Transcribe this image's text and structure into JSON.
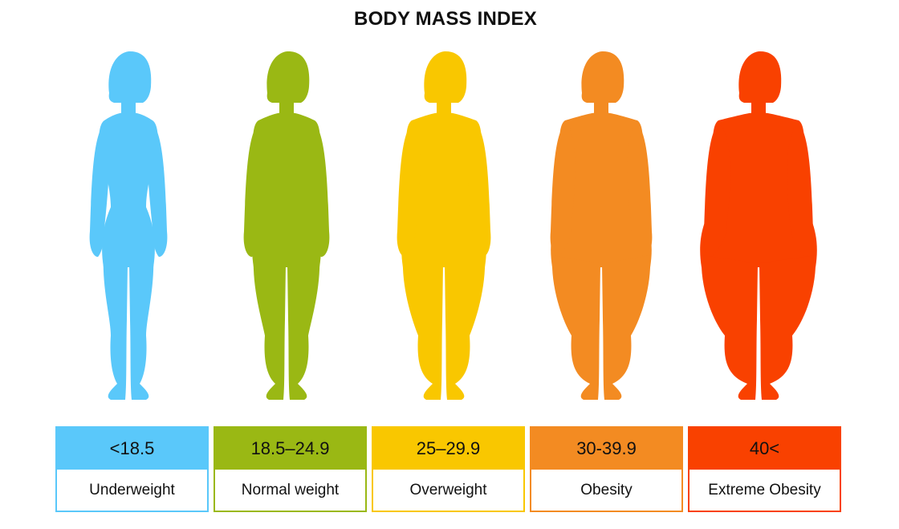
{
  "title": "BODY MASS INDEX",
  "categories": [
    {
      "range": "<18.5",
      "label": "Underweight",
      "color": "#5AC8FA",
      "width": 0
    },
    {
      "range": "18.5–24.9",
      "label": "Normal weight",
      "color": "#9AB814",
      "width": 1
    },
    {
      "range": "25–29.9",
      "label": "Overweight",
      "color": "#F9C700",
      "width": 2
    },
    {
      "range": "30-39.9",
      "label": "Obesity",
      "color": "#F38B22",
      "width": 3
    },
    {
      "range": "40<",
      "label": "Extreme Obesity",
      "color": "#F94100",
      "width": 4
    }
  ]
}
